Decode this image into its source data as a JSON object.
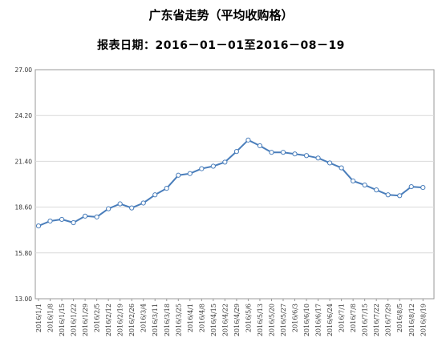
{
  "chart_data": {
    "type": "line",
    "title": "广东省走势（平均收购格）",
    "subtitle": "报表日期：2016－01－01至2016－08－19",
    "ylim": [
      13.0,
      27.0
    ],
    "yticks": [
      "13.00",
      "15.80",
      "18.60",
      "21.40",
      "24.20",
      "27.00"
    ],
    "grid": true,
    "legend": "none",
    "line_color": "#4a7ebb",
    "x": [
      "2016/1/1",
      "2016/1/8",
      "2016/1/15",
      "2016/1/22",
      "2016/1/29",
      "2016/2/5",
      "2016/2/12",
      "2016/2/19",
      "2016/2/26",
      "2016/3/4",
      "2016/3/11",
      "2016/3/18",
      "2016/3/25",
      "2016/4/1",
      "2016/4/8",
      "2016/4/15",
      "2016/4/22",
      "2016/4/29",
      "2016/5/6",
      "2016/5/13",
      "2016/5/20",
      "2016/5/27",
      "2016/6/3",
      "2016/6/10",
      "2016/6/17",
      "2016/6/24",
      "2016/7/1",
      "2016/7/8",
      "2016/7/15",
      "2016/7/22",
      "2016/7/29",
      "2016/8/5",
      "2016/8/12",
      "2016/8/19"
    ],
    "series": [
      {
        "values": [
          17.45,
          17.75,
          17.85,
          17.65,
          18.05,
          18.0,
          18.5,
          18.8,
          18.55,
          18.85,
          19.35,
          19.75,
          20.55,
          20.65,
          20.95,
          21.1,
          21.35,
          22.0,
          22.7,
          22.35,
          21.95,
          21.95,
          21.85,
          21.75,
          21.6,
          21.3,
          21.0,
          20.2,
          19.95,
          19.65,
          19.35,
          19.3,
          19.85,
          19.8
        ]
      }
    ]
  }
}
